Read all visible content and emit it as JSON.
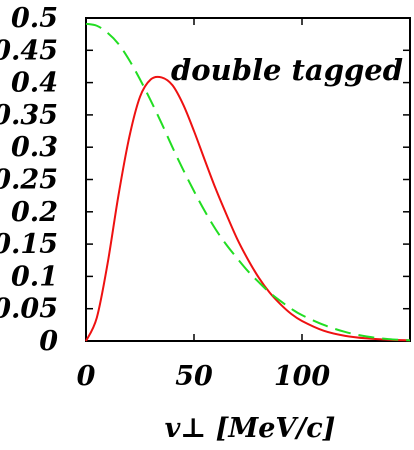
{
  "chart_data": {
    "type": "line",
    "title": "",
    "xlabel": "v⊥ [MeV/c]",
    "ylabel": "",
    "xlim": [
      0,
      150
    ],
    "ylim": [
      0,
      0.5
    ],
    "x_ticks": [
      "0",
      "50",
      "100"
    ],
    "y_ticks": [
      "0",
      "0.05",
      "0.1",
      "0.15",
      "0.2",
      "0.25",
      "0.3",
      "0.35",
      "0.4",
      "0.45",
      "0.5"
    ],
    "annotation": "double tagged",
    "grid": false,
    "series": [
      {
        "style": "solid",
        "color": "#ee1111",
        "x": [
          0,
          5,
          10,
          15,
          20,
          25,
          30,
          35,
          40,
          45,
          50,
          55,
          60,
          65,
          70,
          75,
          80,
          85,
          90,
          95,
          100,
          110,
          120,
          130,
          140,
          150
        ],
        "y": [
          0.0,
          0.036,
          0.12,
          0.225,
          0.315,
          0.378,
          0.405,
          0.408,
          0.396,
          0.366,
          0.325,
          0.28,
          0.236,
          0.196,
          0.158,
          0.126,
          0.098,
          0.075,
          0.057,
          0.042,
          0.031,
          0.016,
          0.008,
          0.004,
          0.002,
          0.001
        ]
      },
      {
        "style": "dashed",
        "color": "#22dd22",
        "x": [
          0,
          5,
          10,
          15,
          20,
          25,
          30,
          35,
          40,
          45,
          50,
          55,
          60,
          65,
          70,
          75,
          80,
          85,
          90,
          95,
          100,
          110,
          120,
          130,
          140,
          150
        ],
        "y": [
          0.491,
          0.488,
          0.477,
          0.46,
          0.435,
          0.405,
          0.372,
          0.337,
          0.3,
          0.265,
          0.232,
          0.201,
          0.173,
          0.149,
          0.128,
          0.108,
          0.091,
          0.075,
          0.062,
          0.05,
          0.04,
          0.025,
          0.014,
          0.007,
          0.003,
          0.001
        ]
      }
    ]
  }
}
